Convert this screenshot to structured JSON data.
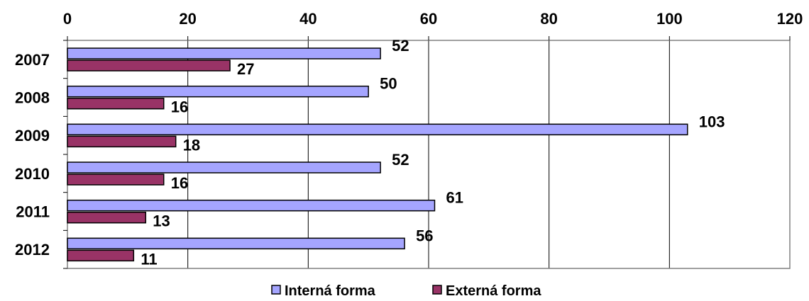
{
  "chart_data": {
    "type": "bar",
    "orientation": "horizontal",
    "categories": [
      "2007",
      "2008",
      "2009",
      "2010",
      "2011",
      "2012"
    ],
    "series": [
      {
        "name": "Interná forma",
        "values": [
          52,
          50,
          103,
          52,
          61,
          56
        ],
        "color": "#a5a5ff"
      },
      {
        "name": "Externá forma",
        "values": [
          27,
          16,
          18,
          16,
          13,
          11
        ],
        "color": "#993366"
      }
    ],
    "x_ticks": [
      "0",
      "20",
      "40",
      "60",
      "80",
      "100",
      "120"
    ],
    "xlim": [
      0,
      120
    ],
    "x_axis_position": "top",
    "grid": true,
    "legend_position": "bottom"
  }
}
